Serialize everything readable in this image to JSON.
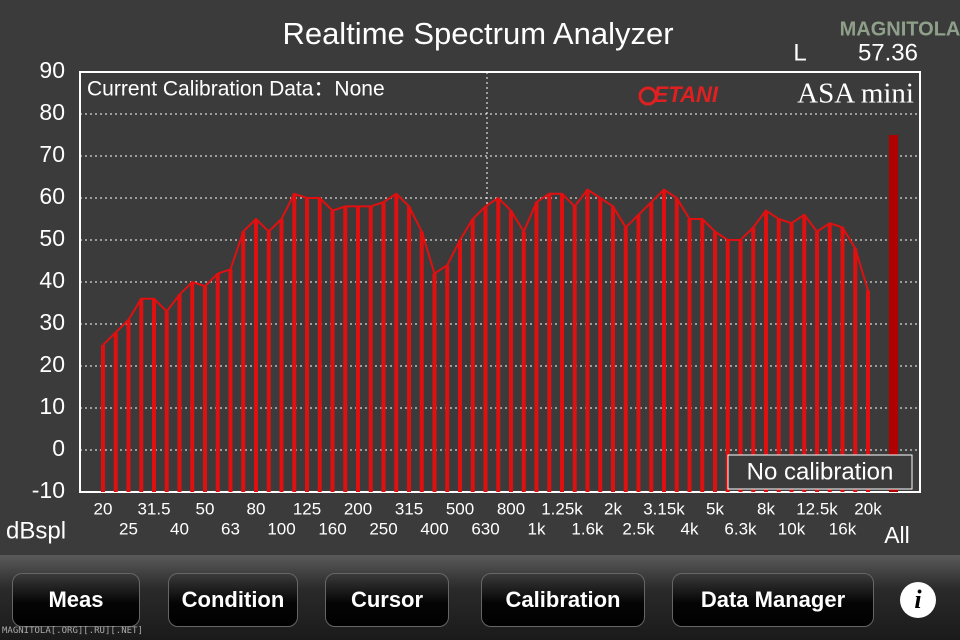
{
  "title": "Realtime Spectrum Analyzer",
  "channel": "L",
  "level": "57.36",
  "watermark": "MAGNITOLA",
  "footer_watermark": "MAGNITOLA[.ORG][.RU][.NET]",
  "toolbar": [
    "Meas",
    "Condition",
    "Cursor",
    "Calibration",
    "Data Manager"
  ],
  "chart_data": {
    "type": "bar",
    "calibration_note": "Current Calibration Data：None",
    "brand": "ETANI",
    "product": "ASA mini",
    "status": "No calibration",
    "y_label": "dBspl",
    "categories": [
      "20",
      null,
      "25",
      null,
      "31.5",
      null,
      "40",
      null,
      "50",
      null,
      "63",
      null,
      "80",
      null,
      "100",
      null,
      "125",
      null,
      "160",
      null,
      "200",
      null,
      "250",
      null,
      "315",
      null,
      "400",
      null,
      "500",
      null,
      "630",
      null,
      "800",
      null,
      "1k",
      null,
      "1.25k",
      null,
      "1.6k",
      null,
      "2k",
      null,
      "2.5k",
      null,
      "3.15k",
      null,
      "4k",
      null,
      "5k",
      null,
      "6.3k",
      null,
      "8k",
      null,
      "10k",
      null,
      "12.5k",
      null,
      "16k",
      null,
      "20k"
    ],
    "values": [
      25,
      28,
      31,
      36,
      36,
      33,
      37,
      40,
      39,
      42,
      43,
      52,
      55,
      52,
      55,
      61,
      60,
      60,
      57,
      58,
      58,
      58,
      59,
      61,
      58,
      52,
      42,
      44,
      50,
      55,
      58,
      60,
      57,
      52,
      59,
      61,
      61,
      58,
      62,
      60,
      58,
      53,
      56,
      59,
      62,
      60,
      55,
      55,
      52,
      50,
      50,
      53,
      57,
      55,
      54,
      56,
      52,
      54,
      53,
      48,
      38
    ],
    "color": "#e01010",
    "overall": {
      "label": "All",
      "value": 75,
      "color": "#b00000"
    },
    "ylim": [
      -10,
      90
    ],
    "yticks": [
      -10,
      0,
      10,
      20,
      30,
      40,
      50,
      60,
      70,
      80,
      90
    ],
    "grid": true
  }
}
